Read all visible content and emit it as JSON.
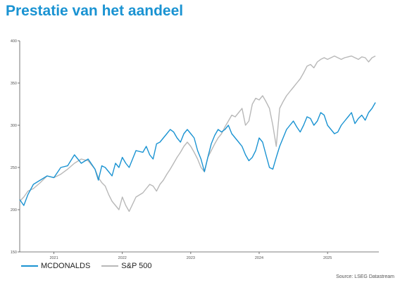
{
  "title": "Prestatie van het aandeel",
  "source": "Source: LSEG Datastream",
  "colors": {
    "accent": "#1a93d2",
    "mcd": "#1a93d2",
    "spx": "#b8b8b8",
    "axis": "#555555"
  },
  "chart_data": {
    "type": "line",
    "x_unit": "year",
    "xlim": [
      2020.5,
      2025.75
    ],
    "ylim": [
      150,
      400
    ],
    "yticks": [
      150,
      200,
      250,
      300,
      350,
      400
    ],
    "xticks": [
      "2021",
      "2022",
      "2023",
      "2024",
      "2025"
    ],
    "xtick_values": [
      2021,
      2022,
      2023,
      2024,
      2025
    ],
    "grid": false,
    "legend_position": "bottom-left",
    "series": [
      {
        "name": "MCDONALDS",
        "color": "#1a93d2",
        "x": [
          2020.5,
          2020.56,
          2020.62,
          2020.7,
          2020.8,
          2020.9,
          2021.0,
          2021.1,
          2021.2,
          2021.3,
          2021.4,
          2021.5,
          2021.6,
          2021.65,
          2021.7,
          2021.75,
          2021.8,
          2021.85,
          2021.9,
          2021.95,
          2022.0,
          2022.05,
          2022.1,
          2022.2,
          2022.3,
          2022.35,
          2022.4,
          2022.45,
          2022.5,
          2022.55,
          2022.6,
          2022.65,
          2022.7,
          2022.75,
          2022.8,
          2022.85,
          2022.9,
          2022.95,
          2023.0,
          2023.05,
          2023.1,
          2023.15,
          2023.2,
          2023.25,
          2023.3,
          2023.35,
          2023.4,
          2023.45,
          2023.5,
          2023.55,
          2023.6,
          2023.65,
          2023.7,
          2023.75,
          2023.8,
          2023.85,
          2023.9,
          2023.95,
          2024.0,
          2024.05,
          2024.1,
          2024.15,
          2024.2,
          2024.25,
          2024.3,
          2024.35,
          2024.4,
          2024.45,
          2024.5,
          2024.55,
          2024.6,
          2024.65,
          2024.7,
          2024.75,
          2024.8,
          2024.85,
          2024.9,
          2024.95,
          2025.0,
          2025.05,
          2025.1,
          2025.15,
          2025.2,
          2025.25,
          2025.3,
          2025.35,
          2025.4,
          2025.45,
          2025.5,
          2025.55,
          2025.6,
          2025.65,
          2025.7
        ],
        "values": [
          212,
          205,
          218,
          230,
          235,
          240,
          238,
          250,
          252,
          265,
          255,
          260,
          248,
          235,
          252,
          250,
          245,
          240,
          255,
          250,
          262,
          255,
          250,
          270,
          268,
          275,
          265,
          260,
          278,
          280,
          285,
          290,
          295,
          292,
          285,
          280,
          290,
          295,
          290,
          285,
          270,
          260,
          245,
          262,
          278,
          288,
          295,
          292,
          295,
          300,
          290,
          285,
          280,
          275,
          265,
          258,
          262,
          270,
          285,
          280,
          265,
          250,
          248,
          262,
          275,
          285,
          295,
          300,
          305,
          298,
          292,
          300,
          310,
          308,
          300,
          305,
          315,
          312,
          300,
          295,
          290,
          292,
          300,
          305,
          310,
          315,
          302,
          308,
          312,
          306,
          315,
          320,
          327
        ]
      },
      {
        "name": "S&P 500",
        "color": "#b8b8b8",
        "x": [
          2020.5,
          2020.56,
          2020.62,
          2020.7,
          2020.8,
          2020.9,
          2021.0,
          2021.1,
          2021.2,
          2021.3,
          2021.4,
          2021.5,
          2021.6,
          2021.65,
          2021.7,
          2021.75,
          2021.8,
          2021.85,
          2021.9,
          2021.95,
          2022.0,
          2022.05,
          2022.1,
          2022.2,
          2022.3,
          2022.35,
          2022.4,
          2022.45,
          2022.5,
          2022.55,
          2022.6,
          2022.65,
          2022.7,
          2022.75,
          2022.8,
          2022.85,
          2022.9,
          2022.95,
          2023.0,
          2023.05,
          2023.1,
          2023.15,
          2023.2,
          2023.25,
          2023.3,
          2023.35,
          2023.4,
          2023.45,
          2023.5,
          2023.55,
          2023.6,
          2023.65,
          2023.7,
          2023.75,
          2023.8,
          2023.85,
          2023.9,
          2023.95,
          2024.0,
          2024.05,
          2024.1,
          2024.15,
          2024.2,
          2024.25,
          2024.3,
          2024.35,
          2024.4,
          2024.45,
          2024.5,
          2024.55,
          2024.6,
          2024.65,
          2024.7,
          2024.75,
          2024.8,
          2024.85,
          2024.9,
          2024.95,
          2025.0,
          2025.05,
          2025.1,
          2025.15,
          2025.2,
          2025.25,
          2025.3,
          2025.35,
          2025.4,
          2025.45,
          2025.5,
          2025.55,
          2025.6,
          2025.65,
          2025.7
        ],
        "values": [
          210,
          215,
          222,
          225,
          232,
          240,
          238,
          242,
          248,
          255,
          260,
          258,
          248,
          238,
          232,
          228,
          218,
          210,
          205,
          200,
          215,
          205,
          198,
          215,
          220,
          225,
          230,
          228,
          222,
          230,
          235,
          242,
          248,
          255,
          262,
          268,
          275,
          280,
          275,
          268,
          260,
          250,
          245,
          262,
          270,
          278,
          285,
          290,
          298,
          305,
          312,
          310,
          315,
          320,
          300,
          305,
          325,
          332,
          330,
          335,
          328,
          320,
          300,
          275,
          320,
          328,
          335,
          340,
          345,
          350,
          355,
          362,
          370,
          372,
          368,
          375,
          378,
          380,
          378,
          380,
          382,
          380,
          378,
          380,
          381,
          382,
          380,
          378,
          381,
          380,
          375,
          380,
          382
        ]
      }
    ]
  }
}
